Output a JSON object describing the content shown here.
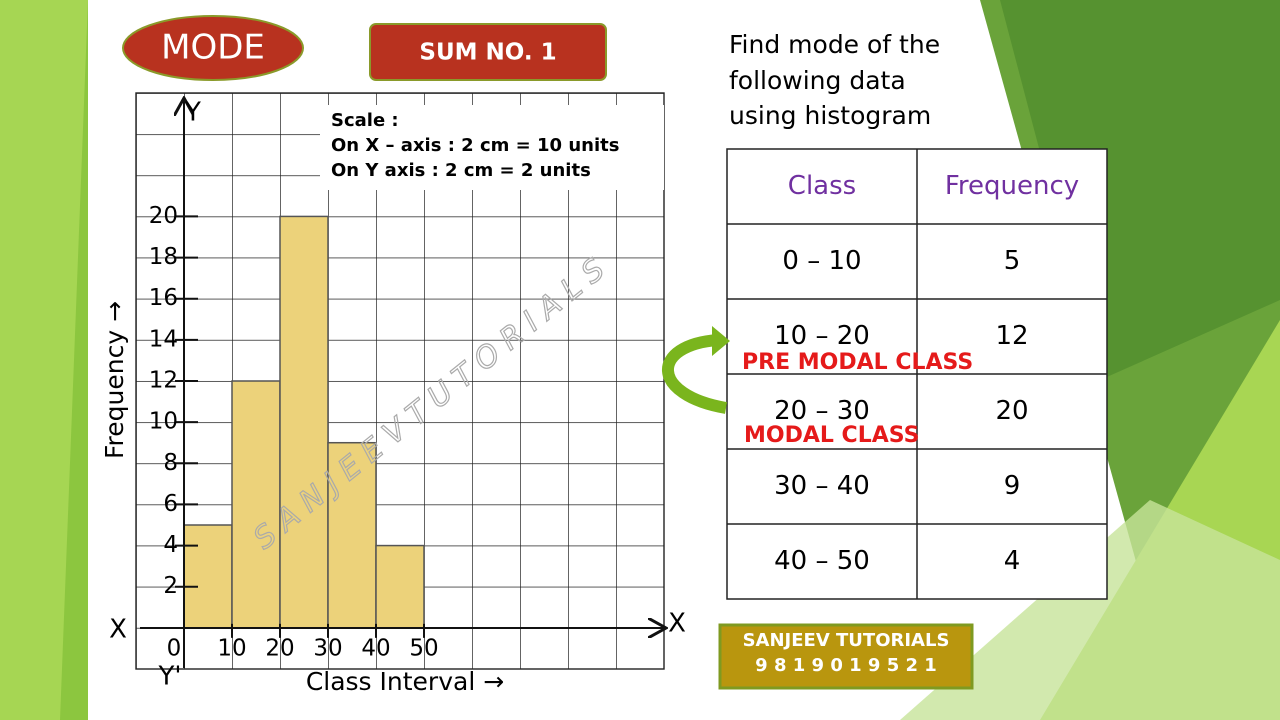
{
  "header": {
    "badge": "MODE",
    "sum": "SUM NO. 1"
  },
  "chart_data": {
    "type": "histogram",
    "bins": [
      0,
      10,
      20,
      30,
      40,
      50
    ],
    "values": [
      5,
      12,
      20,
      9,
      4
    ],
    "color": "#ecd27a",
    "xlim": [
      -10,
      100
    ],
    "ylim": [
      -2,
      26
    ],
    "xticks": [
      0,
      10,
      20,
      30,
      40,
      50
    ],
    "yticks": [
      2,
      4,
      6,
      8,
      10,
      12,
      14,
      16,
      18,
      20
    ],
    "x_label": "Class Interval →",
    "y_label": "Frequency →",
    "axis_letters": [
      "X",
      "X",
      "Y",
      "Y'"
    ],
    "scale_note": [
      "Scale :",
      "On X – axis : 2 cm = 10 units",
      "On Y axis : 2 cm = 2 units"
    ],
    "watermark": "S A N J E E V   T U T O R I A L S"
  },
  "question": [
    "Find mode of the",
    "following data",
    "using histogram"
  ],
  "table": {
    "header": [
      "Class",
      "Frequency"
    ],
    "rows": [
      [
        "0 – 10",
        5
      ],
      [
        "10 – 20",
        12
      ],
      [
        "20 – 30",
        20
      ],
      [
        "30 – 40",
        9
      ],
      [
        "40 – 50",
        4
      ]
    ]
  },
  "annotations": [
    "PRE MODAL CLASS",
    "MODAL CLASS"
  ],
  "footer": [
    "SANJEEV TUTORIALS",
    "9 8 1 9 0 1 9 5 2 1"
  ]
}
